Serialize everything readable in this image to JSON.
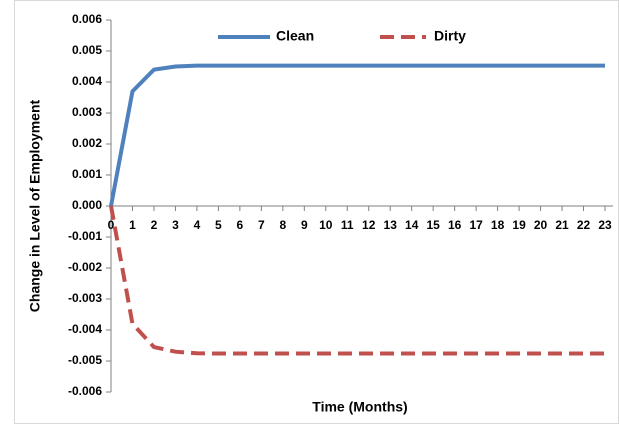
{
  "chart_data": {
    "type": "line",
    "xlabel": "Time (Months)",
    "ylabel": "Change in Level of Employment",
    "x": [
      0,
      1,
      2,
      3,
      4,
      5,
      6,
      7,
      8,
      9,
      10,
      11,
      12,
      13,
      14,
      15,
      16,
      17,
      18,
      19,
      20,
      21,
      22,
      23
    ],
    "xlim": [
      0,
      23
    ],
    "xticks": [
      0,
      1,
      2,
      3,
      4,
      5,
      6,
      7,
      8,
      9,
      10,
      11,
      12,
      13,
      14,
      15,
      16,
      17,
      18,
      19,
      20,
      21,
      22,
      23
    ],
    "ylim": [
      -0.006,
      0.006
    ],
    "yticks": [
      {
        "value": -0.006,
        "label": "-0.006"
      },
      {
        "value": -0.005,
        "label": "-0.005"
      },
      {
        "value": -0.004,
        "label": "-0.004"
      },
      {
        "value": -0.003,
        "label": "-0.003"
      },
      {
        "value": -0.002,
        "label": "-0.002"
      },
      {
        "value": -0.001,
        "label": "-0.001"
      },
      {
        "value": 0,
        "label": "0.000"
      },
      {
        "value": 0.001,
        "label": "0.001"
      },
      {
        "value": 0.002,
        "label": "0.002"
      },
      {
        "value": 0.003,
        "label": "0.003"
      },
      {
        "value": 0.004,
        "label": "0.004"
      },
      {
        "value": 0.005,
        "label": "0.005"
      },
      {
        "value": 0.006,
        "label": "0.006"
      }
    ],
    "legend": "top",
    "series": [
      {
        "name": "Clean",
        "color": "#4f81bd",
        "style": "solid",
        "values": [
          0,
          0.0037,
          0.0044,
          0.0045,
          0.00453,
          0.00453,
          0.00453,
          0.00453,
          0.00453,
          0.00453,
          0.00453,
          0.00453,
          0.00453,
          0.00453,
          0.00453,
          0.00453,
          0.00453,
          0.00453,
          0.00453,
          0.00453,
          0.00453,
          0.00453,
          0.00453,
          0.00453
        ]
      },
      {
        "name": "Dirty",
        "color": "#c0504d",
        "style": "dashed",
        "values": [
          0,
          -0.0038,
          -0.00455,
          -0.0047,
          -0.00475,
          -0.00476,
          -0.00476,
          -0.00476,
          -0.00476,
          -0.00476,
          -0.00476,
          -0.00476,
          -0.00476,
          -0.00476,
          -0.00476,
          -0.00476,
          -0.00476,
          -0.00476,
          -0.00476,
          -0.00476,
          -0.00476,
          -0.00476,
          -0.00476,
          -0.00476
        ]
      }
    ]
  }
}
